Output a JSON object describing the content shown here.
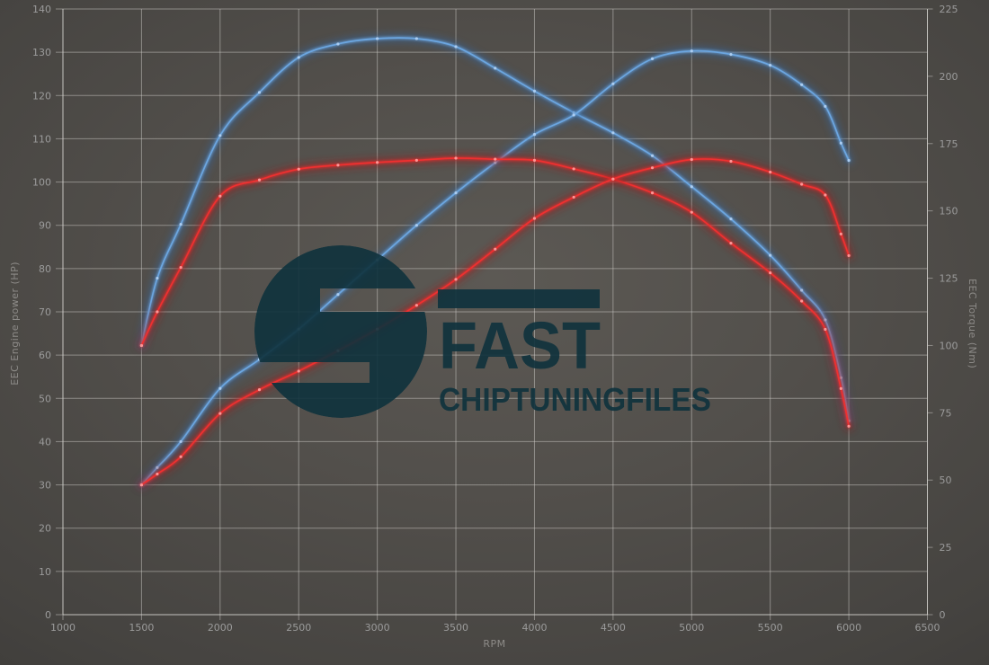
{
  "chart_data": {
    "type": "line",
    "title": "",
    "xlabel": "RPM",
    "ylabel_left": "EEC Engine power (HP)",
    "ylabel_right": "EEC Torque (Nm)",
    "x_min": 1000,
    "x_max": 6500,
    "x_tick_step": 500,
    "x_ticks": [
      1000,
      1500,
      2000,
      2500,
      3000,
      3500,
      4000,
      4500,
      5000,
      5500,
      6000,
      6500
    ],
    "y_left": {
      "min": 0,
      "max": 140,
      "step": 10
    },
    "y_right": {
      "min": 0,
      "max": 225,
      "step": 25
    },
    "grid": true,
    "legend": "none",
    "rpm": [
      1500,
      1600,
      1750,
      2000,
      2250,
      2500,
      2750,
      3000,
      3250,
      3500,
      3750,
      4000,
      4250,
      4500,
      4750,
      5000,
      5250,
      5500,
      5700,
      5850,
      5950,
      6000
    ],
    "series": [
      {
        "name": "tuned-torque-curve",
        "axis": "right",
        "color_core": "#6ca6e0",
        "color_glow": "#35669f",
        "color_marker": "#aecff2",
        "values": [
          100,
          125,
          145,
          178,
          194,
          207,
          212,
          214,
          214,
          211,
          203,
          194.5,
          186.5,
          179,
          170.5,
          159,
          147,
          133.5,
          120.5,
          109.5,
          88,
          72
        ]
      },
      {
        "name": "tuned-power-curve",
        "axis": "left",
        "color_core": "#6ca6e0",
        "color_glow": "#35669f",
        "color_marker": "#aecff2",
        "values": [
          30,
          34,
          40,
          52.3,
          59,
          66,
          74,
          82,
          90,
          97.5,
          104.5,
          111,
          115.5,
          122.7,
          128.5,
          130.3,
          129.5,
          127,
          122.5,
          117.5,
          109,
          105
        ]
      },
      {
        "name": "original-torque-curve",
        "axis": "right",
        "color_core": "#ef3030",
        "color_glow": "#9e1d1d",
        "color_marker": "#ff9a9a",
        "values": [
          100,
          112.5,
          129,
          155.5,
          161.5,
          165.5,
          167,
          168,
          168.8,
          169.6,
          169.2,
          168.8,
          165.6,
          161.8,
          156.7,
          149.5,
          138,
          127,
          116.5,
          106,
          84,
          70
        ]
      },
      {
        "name": "original-power-curve",
        "axis": "left",
        "color_core": "#ef3030",
        "color_glow": "#9e1d1d",
        "color_marker": "#ff9a9a",
        "values": [
          30,
          32.5,
          36.5,
          46.5,
          52,
          56.3,
          61,
          66,
          71.5,
          77.5,
          84.5,
          91.6,
          96.5,
          100.7,
          103.3,
          105.2,
          104.8,
          102.3,
          99.5,
          97,
          88,
          83
        ]
      }
    ]
  },
  "watermark": {
    "brand": "FAST",
    "subtitle": "CHIPTUNINGFILES",
    "color": "#0f323d"
  }
}
